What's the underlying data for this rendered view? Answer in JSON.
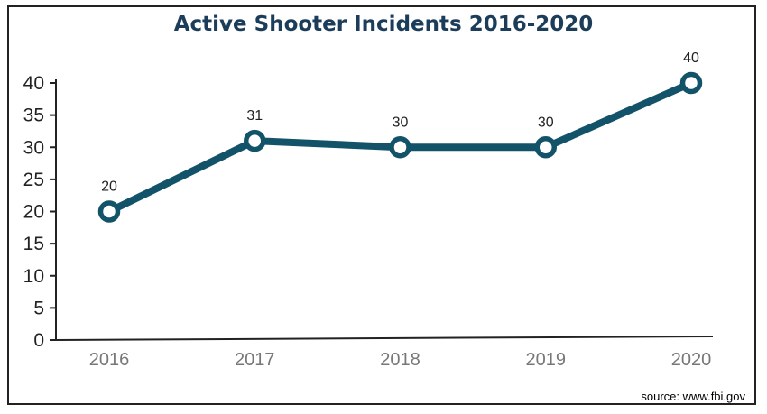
{
  "chart_data": {
    "type": "line",
    "title": "Active Shooter Incidents 2016-2020",
    "xlabel": "",
    "ylabel": "",
    "categories": [
      "2016",
      "2017",
      "2018",
      "2019",
      "2020"
    ],
    "values": [
      20,
      31,
      30,
      30,
      40
    ],
    "ylim": [
      0,
      40
    ],
    "yticks": [
      0,
      5,
      10,
      15,
      20,
      25,
      30,
      35,
      40
    ],
    "data_labels": [
      "20",
      "31",
      "30",
      "30",
      "40"
    ],
    "grid": false,
    "line_color": "#135369"
  },
  "source": "source: www.fbi.gov"
}
